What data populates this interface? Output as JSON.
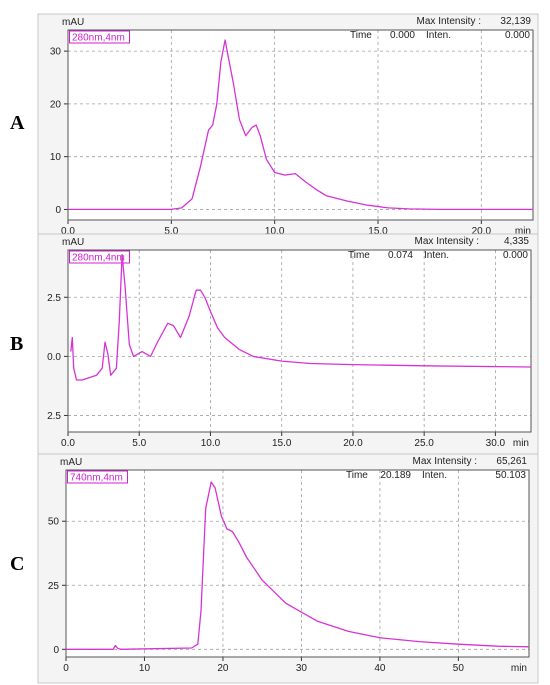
{
  "colors": {
    "trace": "#d633d6",
    "badge": "#d020d0",
    "grid": "#a0a0a0",
    "frame": "#555555"
  },
  "chart_data": [
    {
      "type": "line",
      "panel_letter": "A",
      "ylabel": "mAU",
      "xlabel": "min",
      "wavelength_badge": "280nm,4nm",
      "max_intensity_label": "Max Intensity :",
      "max_intensity_value": "32,139",
      "time_label": "Time",
      "time_value": "0.000",
      "inten_label": "Inten.",
      "inten_value": "0.000",
      "xlim": [
        0,
        22.5
      ],
      "ylim": [
        -2,
        34
      ],
      "x_ticks": [
        "0.0",
        "5.0",
        "10.0",
        "15.0",
        "20.0"
      ],
      "x_tick_values": [
        0,
        5,
        10,
        15,
        20
      ],
      "y_ticks": [
        "0",
        "10",
        "20",
        "30"
      ],
      "y_tick_values": [
        0,
        10,
        20,
        30
      ],
      "series": [
        {
          "x": [
            0,
            5.0,
            5.5,
            6.0,
            6.4,
            6.8,
            7.0,
            7.2,
            7.4,
            7.6,
            7.8,
            8.0,
            8.3,
            8.6,
            8.9,
            9.1,
            9.3,
            9.6,
            10.0,
            10.5,
            11.0,
            11.5,
            12.0,
            12.5,
            13.5,
            14.5,
            15.5,
            16.5,
            18.0,
            22.5
          ],
          "y": [
            0,
            0,
            0.3,
            2,
            8,
            15,
            16,
            20,
            28,
            32.1,
            28,
            24,
            17,
            14,
            15.5,
            16,
            14,
            9.5,
            7,
            6.5,
            6.8,
            5.2,
            3.8,
            2.6,
            1.6,
            0.8,
            0.3,
            0.1,
            0,
            0
          ]
        }
      ]
    },
    {
      "type": "line",
      "panel_letter": "B",
      "ylabel": "mAU",
      "xlabel": "min",
      "wavelength_badge": "280nm,4nm",
      "max_intensity_label": "Max Intensity :",
      "max_intensity_value": "4,335",
      "time_label": "Time",
      "time_value": "0.074",
      "inten_label": "Inten.",
      "inten_value": "0.000",
      "xlim": [
        0,
        32.5
      ],
      "ylim": [
        -3.2,
        4.5
      ],
      "x_ticks": [
        "0.0",
        "5.0",
        "10.0",
        "15.0",
        "20.0",
        "25.0",
        "30.0"
      ],
      "x_tick_values": [
        0,
        5,
        10,
        15,
        20,
        25,
        30
      ],
      "y_ticks": [
        "2.5",
        "0.0",
        "2.5"
      ],
      "y_tick_values": [
        2.5,
        0,
        -2.5
      ],
      "series": [
        {
          "x": [
            0.2,
            0.3,
            0.4,
            0.6,
            1.0,
            2.0,
            2.4,
            2.6,
            2.8,
            3.0,
            3.4,
            3.6,
            3.8,
            4.0,
            4.3,
            4.6,
            5.2,
            5.8,
            6.2,
            7.0,
            7.4,
            7.9,
            8.5,
            9.0,
            9.3,
            9.6,
            10.0,
            10.5,
            11.0,
            12.0,
            13.0,
            15.0,
            17.0,
            20.0,
            25.0,
            32.5
          ],
          "y": [
            0.2,
            0.8,
            -0.5,
            -1.0,
            -1.0,
            -0.8,
            -0.5,
            0.6,
            0.1,
            -0.8,
            -0.5,
            1.5,
            4.3,
            3.0,
            0.5,
            0.0,
            0.2,
            0.0,
            0.5,
            1.4,
            1.3,
            0.8,
            1.7,
            2.8,
            2.8,
            2.5,
            1.9,
            1.2,
            0.8,
            0.3,
            0.0,
            -0.2,
            -0.3,
            -0.35,
            -0.4,
            -0.45
          ]
        }
      ]
    },
    {
      "type": "line",
      "panel_letter": "C",
      "ylabel": "mAU",
      "xlabel": "min",
      "wavelength_badge": "740nm,4nm",
      "max_intensity_label": "Max Intensity :",
      "max_intensity_value": "65,261",
      "time_label": "Time",
      "time_value": "20.189",
      "inten_label": "Inten.",
      "inten_value": "50.103",
      "xlim": [
        0,
        59
      ],
      "ylim": [
        -3,
        70
      ],
      "x_ticks": [
        "0",
        "10",
        "20",
        "30",
        "40",
        "50"
      ],
      "x_tick_values": [
        0,
        10,
        20,
        30,
        40,
        50
      ],
      "y_ticks": [
        "0",
        "25",
        "50"
      ],
      "y_tick_values": [
        0,
        25,
        50
      ],
      "series": [
        {
          "x": [
            0,
            6.0,
            6.3,
            6.6,
            7.0,
            16.0,
            16.8,
            17.2,
            17.8,
            18.5,
            19.0,
            19.8,
            20.5,
            21.2,
            22.0,
            23.0,
            25.0,
            28.0,
            32.0,
            36.0,
            40.0,
            45.0,
            50.0,
            55.0,
            59.0
          ],
          "y": [
            0,
            0,
            1.5,
            0.3,
            0,
            0.5,
            2,
            15,
            55,
            65.3,
            63,
            52,
            47,
            46,
            42,
            36,
            27,
            18,
            11,
            7,
            4.5,
            3,
            2,
            1.2,
            1
          ]
        }
      ]
    }
  ]
}
